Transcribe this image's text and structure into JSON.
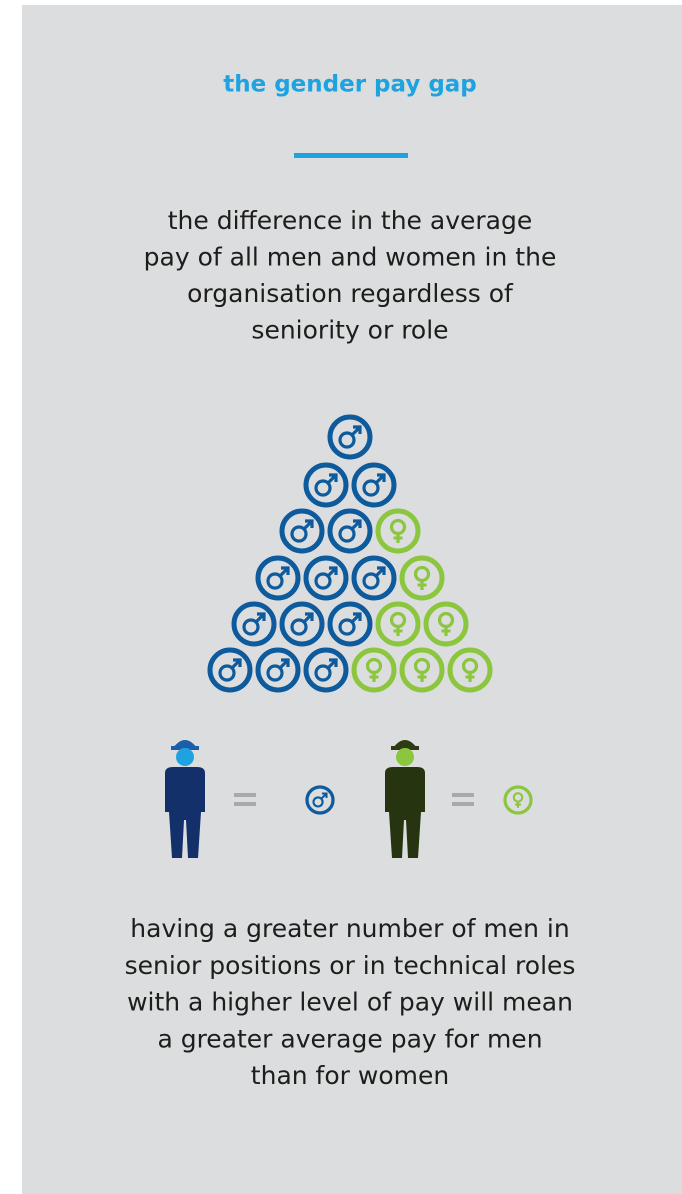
{
  "header": {
    "title": "the gender pay gap"
  },
  "definition": {
    "lines": [
      "the difference in the average",
      "pay of all men and women in the",
      "organisation regardless of",
      "seniority or role"
    ]
  },
  "explanation": {
    "lines": [
      "having a greater number of men in",
      "senior positions or in technical roles",
      "with a higher level of pay will mean",
      "a greater average pay for men",
      "than for women"
    ]
  }
}
